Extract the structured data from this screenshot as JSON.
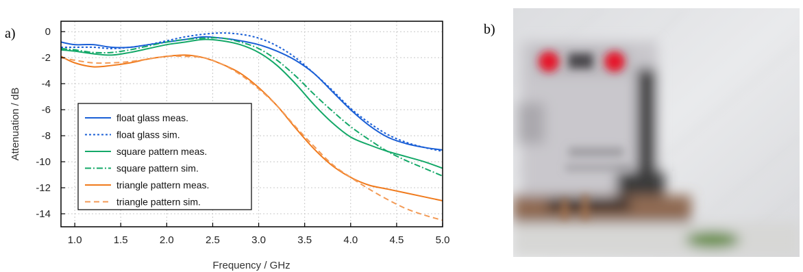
{
  "panels": {
    "a": "a)",
    "b": "b)"
  },
  "photo": {
    "icon": "blurred-device-photo-icon",
    "colors": {
      "red": "#e5172b",
      "card": "#cfcdd1",
      "dark": "#2a2a2a",
      "wall": "#e6e7e9",
      "green": "#5f8a35",
      "copper": "#a8734e"
    }
  },
  "chart_data": {
    "type": "line",
    "title": "",
    "xlabel": "Frequency / GHz",
    "ylabel": "Attenuation / dB",
    "xlim": [
      0.85,
      5.0
    ],
    "ylim": [
      -15.0,
      0.8
    ],
    "xticks": [
      "1.0",
      "1.5",
      "2.0",
      "2.5",
      "3.0",
      "3.5",
      "4.0",
      "4.5",
      "5.0"
    ],
    "yticks": [
      "0",
      "-2",
      "-4",
      "-6",
      "-8",
      "-10",
      "-12",
      "-14"
    ],
    "grid": true,
    "legend_position": "bottom-left",
    "series": [
      {
        "name": "float glass meas.",
        "color": "#1a5fd6",
        "style": "solid",
        "x": [
          0.85,
          1.0,
          1.2,
          1.4,
          1.6,
          1.8,
          2.0,
          2.2,
          2.4,
          2.6,
          2.8,
          3.0,
          3.2,
          3.4,
          3.6,
          3.8,
          4.0,
          4.2,
          4.4,
          4.6,
          4.8,
          5.0
        ],
        "y": [
          -0.8,
          -1.0,
          -1.0,
          -1.2,
          -1.2,
          -1.0,
          -0.8,
          -0.6,
          -0.4,
          -0.5,
          -0.7,
          -1.0,
          -1.5,
          -2.2,
          -3.2,
          -4.6,
          -6.0,
          -7.2,
          -8.1,
          -8.6,
          -8.9,
          -9.1
        ]
      },
      {
        "name": "float glass sim.",
        "color": "#1a5fd6",
        "style": "dotted",
        "x": [
          0.85,
          1.0,
          1.2,
          1.4,
          1.6,
          1.8,
          2.0,
          2.2,
          2.4,
          2.6,
          2.8,
          3.0,
          3.2,
          3.4,
          3.6,
          3.8,
          4.0,
          4.2,
          4.4,
          4.6,
          4.8,
          5.0
        ],
        "y": [
          -1.2,
          -1.2,
          -1.2,
          -1.3,
          -1.2,
          -1.0,
          -0.7,
          -0.4,
          -0.2,
          -0.1,
          -0.2,
          -0.5,
          -1.1,
          -2.0,
          -3.2,
          -4.5,
          -5.9,
          -7.0,
          -7.9,
          -8.5,
          -8.9,
          -9.2
        ]
      },
      {
        "name": "square pattern meas.",
        "color": "#14a868",
        "style": "solid",
        "x": [
          0.85,
          1.0,
          1.2,
          1.4,
          1.6,
          1.8,
          2.0,
          2.2,
          2.4,
          2.6,
          2.8,
          3.0,
          3.2,
          3.4,
          3.6,
          3.8,
          4.0,
          4.2,
          4.4,
          4.6,
          4.8,
          5.0
        ],
        "y": [
          -1.4,
          -1.5,
          -1.7,
          -1.8,
          -1.6,
          -1.3,
          -1.0,
          -0.8,
          -0.6,
          -0.7,
          -1.0,
          -1.6,
          -2.6,
          -4.0,
          -5.6,
          -7.0,
          -8.1,
          -8.7,
          -9.2,
          -9.6,
          -10.0,
          -10.5
        ]
      },
      {
        "name": "square pattern sim.",
        "color": "#14a868",
        "style": "dashdot",
        "x": [
          0.85,
          1.0,
          1.2,
          1.4,
          1.6,
          1.8,
          2.0,
          2.2,
          2.4,
          2.6,
          2.8,
          3.0,
          3.2,
          3.4,
          3.6,
          3.8,
          4.0,
          4.2,
          4.4,
          4.6,
          4.8,
          5.0
        ],
        "y": [
          -1.3,
          -1.4,
          -1.6,
          -1.6,
          -1.4,
          -1.1,
          -0.8,
          -0.6,
          -0.5,
          -0.5,
          -0.8,
          -1.3,
          -2.2,
          -3.4,
          -4.8,
          -6.1,
          -7.3,
          -8.3,
          -9.2,
          -9.9,
          -10.5,
          -11.1
        ]
      },
      {
        "name": "triangle pattern meas.",
        "color": "#f07a1c",
        "style": "solid",
        "x": [
          0.85,
          1.0,
          1.2,
          1.4,
          1.6,
          1.8,
          2.0,
          2.2,
          2.4,
          2.6,
          2.8,
          3.0,
          3.2,
          3.4,
          3.6,
          3.8,
          4.0,
          4.2,
          4.4,
          4.6,
          4.8,
          5.0
        ],
        "y": [
          -1.9,
          -2.4,
          -2.7,
          -2.6,
          -2.4,
          -2.1,
          -1.9,
          -1.8,
          -2.0,
          -2.5,
          -3.2,
          -4.3,
          -5.7,
          -7.4,
          -9.0,
          -10.3,
          -11.2,
          -11.8,
          -12.1,
          -12.4,
          -12.7,
          -13.0
        ]
      },
      {
        "name": "triangle pattern sim.",
        "color": "#f39a55",
        "style": "dashed",
        "x": [
          0.85,
          1.0,
          1.2,
          1.4,
          1.6,
          1.8,
          2.0,
          2.2,
          2.4,
          2.6,
          2.8,
          3.0,
          3.2,
          3.4,
          3.6,
          3.8,
          4.0,
          4.2,
          4.4,
          4.6,
          4.8,
          5.0
        ],
        "y": [
          -2.0,
          -2.2,
          -2.4,
          -2.4,
          -2.3,
          -2.1,
          -1.9,
          -1.9,
          -2.0,
          -2.5,
          -3.3,
          -4.4,
          -5.7,
          -7.3,
          -8.8,
          -10.2,
          -11.2,
          -12.1,
          -12.9,
          -13.6,
          -14.1,
          -14.5
        ]
      }
    ]
  }
}
